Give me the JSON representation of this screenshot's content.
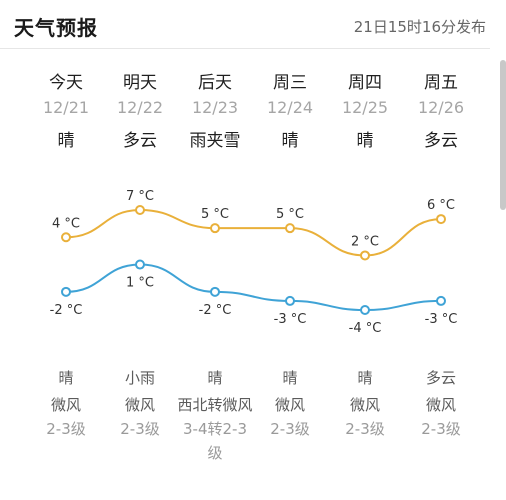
{
  "header": {
    "title": "天气预报",
    "updated": "21日15时16分发布"
  },
  "days": [
    {
      "day": "今天",
      "date": "12/21",
      "condition": "晴",
      "high": "4 °C",
      "low": "-2 °C",
      "high_c": 4,
      "low_c": -2,
      "weather": "晴",
      "wind": "微风",
      "level": "2-3级"
    },
    {
      "day": "明天",
      "date": "12/22",
      "condition": "多云",
      "high": "7 °C",
      "low": "1 °C",
      "high_c": 7,
      "low_c": 1,
      "weather": "小雨",
      "wind": "微风",
      "level": "2-3级"
    },
    {
      "day": "后天",
      "date": "12/23",
      "condition": "雨夹雪",
      "high": "5 °C",
      "low": "-2 °C",
      "high_c": 5,
      "low_c": -2,
      "weather": "晴",
      "wind": "西北转微风",
      "level": "3-4转2-3级"
    },
    {
      "day": "周三",
      "date": "12/24",
      "condition": "晴",
      "high": "5 °C",
      "low": "-3 °C",
      "high_c": 5,
      "low_c": -3,
      "weather": "晴",
      "wind": "微风",
      "level": "2-3级"
    },
    {
      "day": "周四",
      "date": "12/25",
      "condition": "晴",
      "high": "2 °C",
      "low": "-4 °C",
      "high_c": 2,
      "low_c": -4,
      "weather": "晴",
      "wind": "微风",
      "level": "2-3级"
    },
    {
      "day": "周五",
      "date": "12/26",
      "condition": "多云",
      "high": "6 °C",
      "low": "-3 °C",
      "high_c": 6,
      "low_c": -3,
      "weather": "多云",
      "wind": "微风",
      "level": "2-3级"
    }
  ],
  "colors": {
    "high_line": "#e9b03a",
    "low_line": "#3fa3d6"
  }
}
